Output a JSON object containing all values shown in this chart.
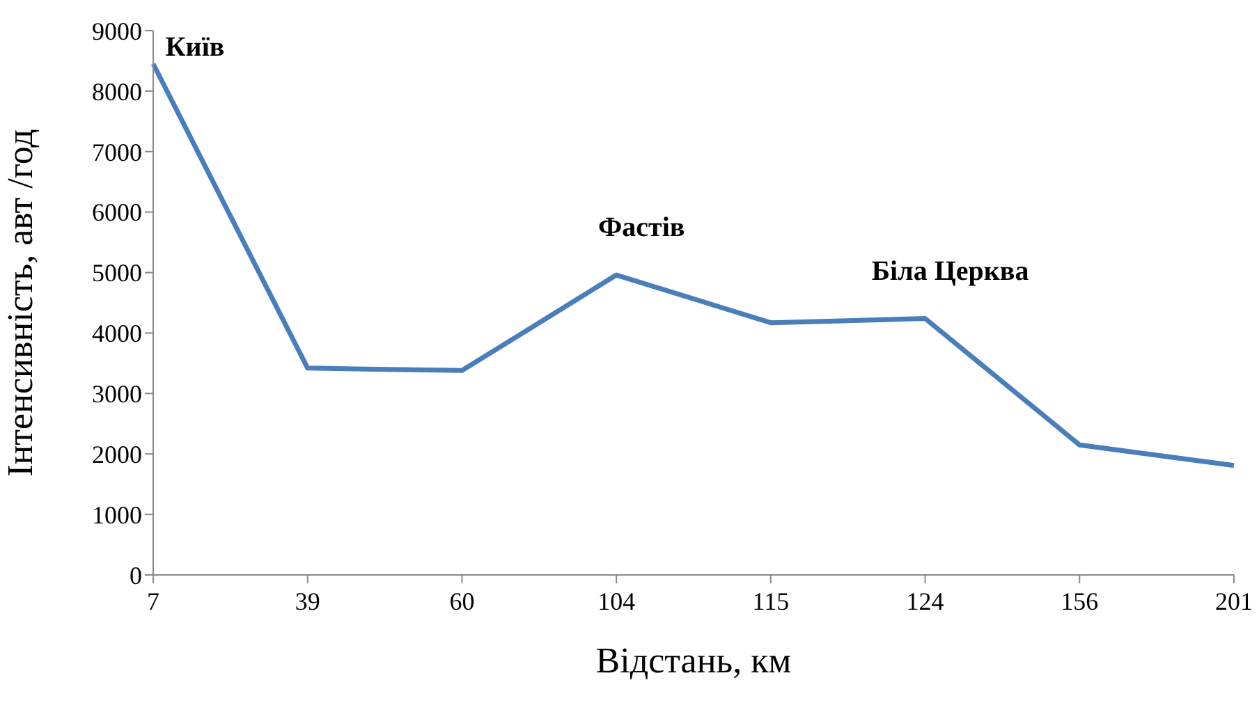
{
  "chart_data": {
    "type": "line",
    "xlabel": "Відстань, км",
    "ylabel": "Інтенсивність,  авт /год",
    "categories": [
      "7",
      "39",
      "60",
      "104",
      "115",
      "124",
      "156",
      "201"
    ],
    "series": [
      {
        "color": "#4a7ebb",
        "values": [
          8450,
          3420,
          3380,
          4960,
          4170,
          4240,
          2150,
          1810
        ]
      }
    ],
    "ylim": [
      0,
      9000
    ],
    "yticks": [
      0,
      1000,
      2000,
      3000,
      4000,
      5000,
      6000,
      7000,
      8000,
      9000
    ],
    "grid": false,
    "legend": false,
    "marker": "none",
    "line_style": "solid",
    "annotations": [
      {
        "text": "Київ",
        "x": "7",
        "y": 8450
      },
      {
        "text": "Фастів",
        "x": "104",
        "y": 4960
      },
      {
        "text": "Біла Церква",
        "x": "124",
        "y": 4240
      }
    ]
  }
}
